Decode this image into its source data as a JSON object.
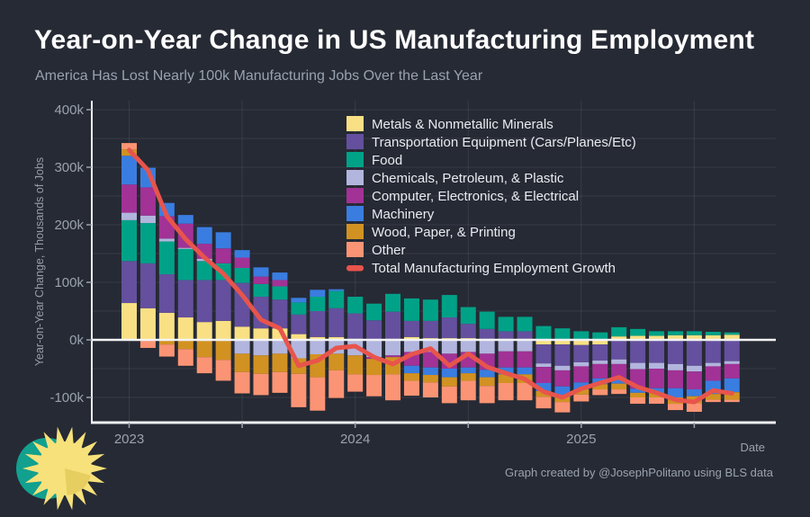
{
  "page": {
    "title": "Year-on-Year Change in US Manufacturing Employment",
    "subtitle": "America Has Lost Nearly 100k Manufacturing Jobs Over the Last Year",
    "credit": "Graph created by @JosephPolitano using BLS data"
  },
  "colors": {
    "background": "#262a34",
    "axis_line": "#edeff2",
    "zero_line": "#f2f3f5",
    "gridline": "rgba(170,178,192,0.13)",
    "tick_text": "#9aa2af",
    "title_text": "#ffffff",
    "subtitle_text": "#99a2b0",
    "legend_text": "#e9ebf0",
    "logo_teal": "#12a08f",
    "logo_sun": "#f6e17a",
    "logo_sun_dark": "#e6ce60"
  },
  "chart_data": {
    "type": "bar",
    "stacked": true,
    "title": "Year-on-Year Change in US Manufacturing Employment",
    "xlabel": "Date",
    "ylabel": "Year-on-Year Change, Thousands of Jobs",
    "units": "thousands of jobs",
    "ylim": [
      -145,
      410
    ],
    "yticks": {
      "values": [
        400,
        300,
        200,
        100,
        0,
        -100
      ],
      "labels": [
        "400k",
        "300k",
        "200k",
        "100k",
        "0k",
        "-100k"
      ]
    },
    "ygrid_values": [
      400,
      350,
      300,
      250,
      200,
      150,
      100,
      50,
      -50,
      -100
    ],
    "xticks": {
      "month_indices": [
        0,
        12,
        24
      ],
      "labels": [
        "2023",
        "2024",
        "2025"
      ]
    },
    "xgrid_month_indices": [
      0,
      6,
      12,
      18,
      24,
      30
    ],
    "legend_position": "top-center-inside",
    "months": [
      "2023-01",
      "2023-02",
      "2023-03",
      "2023-04",
      "2023-05",
      "2023-06",
      "2023-07",
      "2023-08",
      "2023-09",
      "2023-10",
      "2023-11",
      "2023-12",
      "2024-01",
      "2024-02",
      "2024-03",
      "2024-04",
      "2024-05",
      "2024-06",
      "2024-07",
      "2024-08",
      "2024-09",
      "2024-10",
      "2024-11",
      "2024-12",
      "2025-01",
      "2025-02",
      "2025-03",
      "2025-04",
      "2025-05",
      "2025-06",
      "2025-07",
      "2025-08",
      "2025-09"
    ],
    "series": [
      {
        "name": "Metals & Nonmetallic Minerals",
        "color": "#f9e084",
        "values": [
          64,
          55,
          47,
          39,
          31,
          33,
          23,
          20,
          20,
          10,
          5,
          5,
          2,
          1,
          2,
          5,
          3,
          3,
          3,
          2,
          2,
          2,
          -8,
          -8,
          -9,
          -8,
          6,
          7,
          7,
          8,
          8,
          8,
          9
        ]
      },
      {
        "name": "Transportation Equipment (Cars/Planes/Etc)",
        "color": "#64509e",
        "values": [
          73,
          78,
          67,
          65,
          73,
          71,
          76,
          55,
          50,
          34,
          45,
          50,
          44,
          33,
          47,
          28,
          30,
          36,
          25,
          17,
          13,
          13,
          -33,
          -37,
          -30,
          -28,
          -34,
          -40,
          -40,
          -42,
          -45,
          -40,
          -37
        ]
      },
      {
        "name": "Food",
        "color": "#00a287",
        "values": [
          71,
          70,
          57,
          54,
          33,
          29,
          26,
          22,
          23,
          21,
          25,
          30,
          29,
          29,
          31,
          39,
          37,
          39,
          29,
          30,
          25,
          25,
          24,
          20,
          15,
          13,
          16,
          12,
          8,
          7,
          7,
          6,
          4
        ]
      },
      {
        "name": "Chemicals, Petroleum, & Plastic",
        "color": "#b2b5dd",
        "values": [
          13,
          13,
          5,
          2,
          4,
          0,
          -24,
          -27,
          -24,
          -32,
          -25,
          -24,
          -27,
          -30,
          -27,
          -21,
          -21,
          -24,
          -21,
          -24,
          -20,
          -20,
          -6,
          -8,
          -7,
          -6,
          -8,
          -11,
          -10,
          -11,
          -10,
          -6,
          -5
        ]
      },
      {
        "name": "Computer, Electronics, & Electrical",
        "color": "#a23296",
        "values": [
          49,
          49,
          39,
          42,
          26,
          26,
          18,
          13,
          11,
          0,
          0,
          0,
          0,
          -3,
          -3,
          -24,
          -27,
          -26,
          -27,
          -28,
          -28,
          -28,
          -28,
          -28,
          -28,
          -25,
          -24,
          -34,
          -34,
          -31,
          -31,
          -25,
          -25
        ]
      },
      {
        "name": "Machinery",
        "color": "#3a7de0",
        "values": [
          50,
          34,
          23,
          15,
          29,
          28,
          13,
          16,
          13,
          8,
          12,
          3,
          0,
          0,
          0,
          -13,
          -13,
          -15,
          -10,
          -13,
          -12,
          -12,
          -14,
          -16,
          -12,
          -10,
          -10,
          -7,
          -8,
          -16,
          -12,
          -23,
          -24
        ]
      },
      {
        "name": "Wood, Paper, & Printing",
        "color": "#d29222",
        "values": [
          11,
          0,
          -8,
          -16,
          -30,
          -35,
          -32,
          -32,
          -32,
          -27,
          -40,
          -29,
          -33,
          -28,
          -30,
          -13,
          -13,
          -16,
          -13,
          -15,
          -15,
          -15,
          -10,
          -11,
          -9,
          -9,
          -10,
          -8,
          -8,
          -11,
          -12,
          -10,
          -13
        ]
      },
      {
        "name": "Other",
        "color": "#fb9474",
        "values": [
          11,
          -14,
          -21,
          -29,
          -28,
          -36,
          -37,
          -37,
          -36,
          -58,
          -58,
          -48,
          -30,
          -37,
          -45,
          -26,
          -26,
          -29,
          -34,
          -30,
          -30,
          -30,
          -20,
          -18,
          -12,
          -10,
          -8,
          -11,
          -11,
          -11,
          -15,
          -4,
          -4
        ]
      }
    ],
    "line_series": {
      "name": "Total Manufacturing Employment Growth",
      "color": "#e8544c",
      "values": [
        330,
        295,
        215,
        175,
        143,
        115,
        78,
        35,
        20,
        -45,
        -36,
        -14,
        -11,
        -30,
        -42,
        -25,
        -15,
        -45,
        -24,
        -47,
        -58,
        -68,
        -90,
        -100,
        -85,
        -75,
        -65,
        -82,
        -92,
        -104,
        -108,
        -88,
        -93
      ]
    }
  }
}
